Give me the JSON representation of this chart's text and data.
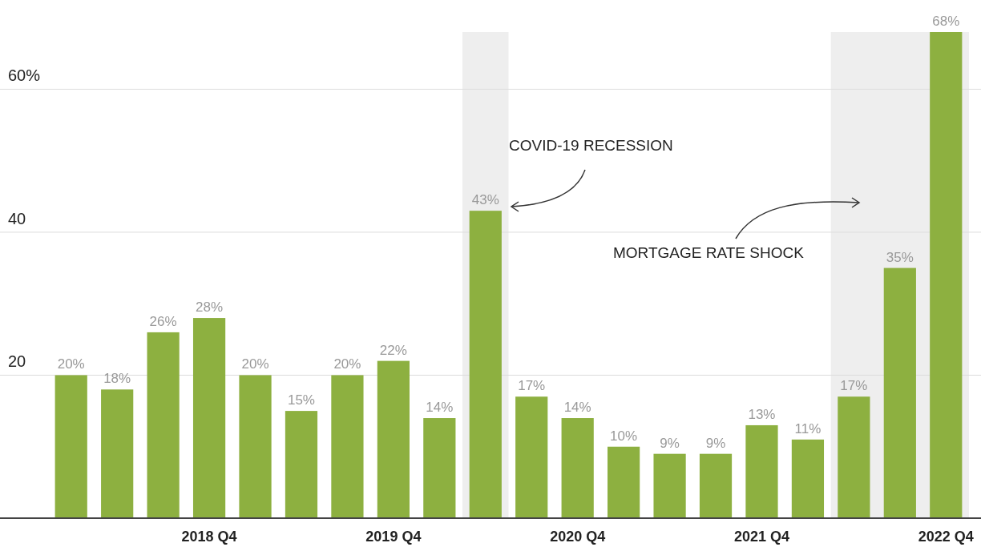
{
  "chart_data": {
    "type": "bar",
    "categories": [
      null,
      null,
      null,
      "2018 Q4",
      null,
      null,
      null,
      "2019 Q4",
      null,
      null,
      null,
      "2020 Q4",
      null,
      null,
      null,
      "2021 Q4",
      null,
      null,
      null,
      "2022 Q4"
    ],
    "values": [
      20,
      18,
      26,
      28,
      20,
      15,
      20,
      22,
      14,
      43,
      17,
      14,
      10,
      9,
      9,
      13,
      11,
      17,
      35,
      68
    ],
    "value_labels": [
      "20%",
      "18%",
      "26%",
      "28%",
      "20%",
      "15%",
      "20%",
      "22%",
      "14%",
      "43%",
      "17%",
      "14%",
      "10%",
      "9%",
      "9%",
      "13%",
      "11%",
      "17%",
      "35%",
      "68%"
    ],
    "color": "#8db040",
    "ylim": [
      0,
      68
    ],
    "yticks": [
      20,
      40,
      {
        "value": 60,
        "label": "60%"
      }
    ],
    "grid": "y",
    "annotations": [
      "COVID-19 RECESSION",
      "MORTGAGE RATE SHOCK"
    ]
  }
}
